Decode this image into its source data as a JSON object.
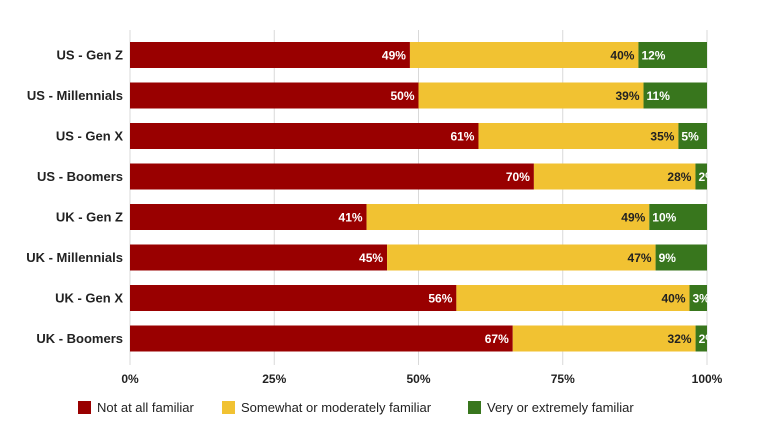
{
  "chart_data": {
    "type": "bar",
    "orientation": "horizontal",
    "stacked": true,
    "categories": [
      "US - Gen Z",
      "US - Millennials",
      "US - Gen X",
      "US - Boomers",
      "UK - Gen Z",
      "UK - Millennials",
      "UK - Gen X",
      "UK - Boomers"
    ],
    "series": [
      {
        "name": "Not at all familiar",
        "color": "#990000",
        "label_color": "#ffffff",
        "values": [
          49,
          50,
          61,
          70,
          41,
          45,
          56,
          67
        ],
        "labels": [
          "49%",
          "50%",
          "61%",
          "70%",
          "41%",
          "45%",
          "56%",
          "67%"
        ]
      },
      {
        "name": "Somewhat or moderately familiar",
        "color": "#f1c232",
        "label_color": "#222222",
        "values": [
          40,
          39,
          35,
          28,
          49,
          47,
          40,
          32
        ],
        "labels": [
          "40%",
          "39%",
          "35%",
          "28%",
          "49%",
          "47%",
          "40%",
          "32%"
        ]
      },
      {
        "name": "Very or extremely familiar",
        "color": "#38761d",
        "label_color": "#ffffff",
        "values": [
          12,
          11,
          5,
          2,
          10,
          9,
          3,
          2
        ],
        "labels": [
          "12%",
          "11%",
          "5%",
          "2%",
          "10%",
          "9%",
          "3%",
          "2%"
        ]
      }
    ],
    "xlim": [
      0,
      100
    ],
    "xticks": [
      "0%",
      "25%",
      "50%",
      "75%",
      "100%"
    ],
    "grid": true,
    "legend_position": "bottom"
  }
}
